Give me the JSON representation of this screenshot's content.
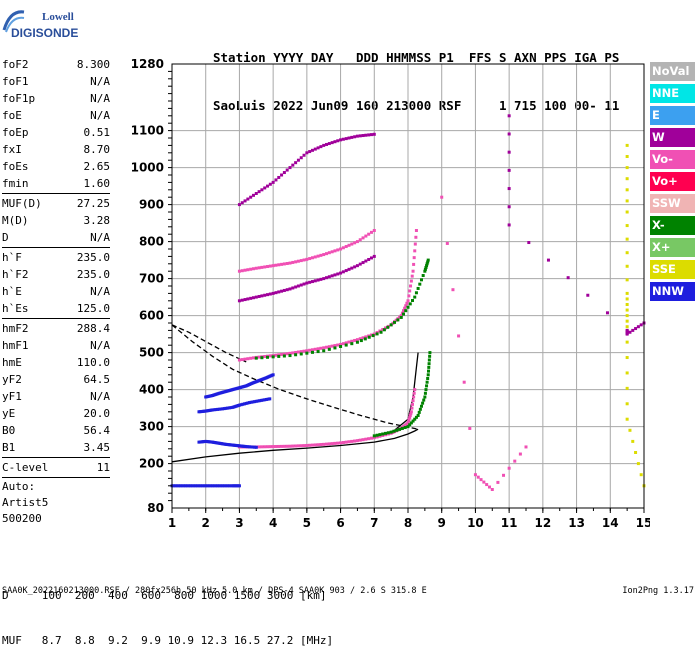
{
  "logo": {
    "line1": "Lowell",
    "line2": "DIGISONDE"
  },
  "header": {
    "line1": "Station YYYY DAY   DDD HHMMSS P1  FFS S AXN PPS IGA PS",
    "line2": "SaoLuis 2022 Jun09 160 213000 RSF     1 715 100 00- 11"
  },
  "params_top": [
    {
      "label": "foF2",
      "value": "8.300"
    },
    {
      "label": "foF1",
      "value": "N/A"
    },
    {
      "label": "foF1p",
      "value": "N/A"
    },
    {
      "label": "foE",
      "value": "N/A"
    },
    {
      "label": "foEp",
      "value": "0.51"
    },
    {
      "label": "fxI",
      "value": "8.70"
    },
    {
      "label": "foEs",
      "value": "2.65"
    },
    {
      "label": "fmin",
      "value": "1.60"
    }
  ],
  "params_muf": [
    {
      "label": "MUF(D)",
      "value": "27.25"
    },
    {
      "label": "M(D)",
      "value": "3.28"
    },
    {
      "label": "D",
      "value": "N/A"
    }
  ],
  "params_heights": [
    {
      "label": "h`F",
      "value": "235.0"
    },
    {
      "label": "h`F2",
      "value": "235.0"
    },
    {
      "label": "h`E",
      "value": "N/A"
    },
    {
      "label": "h`Es",
      "value": "125.0"
    }
  ],
  "params_profile": [
    {
      "label": "hmF2",
      "value": "288.4"
    },
    {
      "label": "hmF1",
      "value": "N/A"
    },
    {
      "label": "hmE",
      "value": "110.0"
    },
    {
      "label": "yF2",
      "value": "64.5"
    },
    {
      "label": "yF1",
      "value": "N/A"
    },
    {
      "label": "yE",
      "value": "20.0"
    },
    {
      "label": "B0",
      "value": "56.4"
    },
    {
      "label": "B1",
      "value": "3.45"
    }
  ],
  "clevel": {
    "label": "C-level",
    "value": "11"
  },
  "auto": {
    "line1": "Auto:",
    "line2": "Artist5",
    "line3": "500200"
  },
  "muf_table": {
    "line1": "D     100  200  400  600  800 1000 1500 3000 [km]",
    "line2": "MUF   8.7  8.8  9.2  9.9 10.9 12.3 16.5 27.2 [MHz]"
  },
  "footer": "SAA0K_2022160213000.RSF / 280fx256h 50 kHz 5.0 km / DPS-4 SAA0K 903 / 2.6 S 315.8 E",
  "version": "Ion2Png 1.3.17",
  "legend": [
    {
      "label": "NoVal",
      "color": "#b4b4b4"
    },
    {
      "label": "NNE",
      "color": "#00e6e6"
    },
    {
      "label": "E",
      "color": "#3ca0f0"
    },
    {
      "label": "W",
      "color": "#a0009a"
    },
    {
      "label": "Vo-",
      "color": "#f050b4"
    },
    {
      "label": "Vo+",
      "color": "#ff0050"
    },
    {
      "label": "SSW",
      "color": "#f0b4b4"
    },
    {
      "label": "X-",
      "color": "#008200"
    },
    {
      "label": "X+",
      "color": "#78c864"
    },
    {
      "label": "SSE",
      "color": "#dcdc00"
    },
    {
      "label": "NNW",
      "color": "#1e1ede"
    }
  ],
  "chart_data": {
    "type": "scatter",
    "xlim": [
      1,
      15
    ],
    "ylim": [
      80,
      1280
    ],
    "x_ticks": [
      "1",
      "2",
      "3",
      "4",
      "5",
      "6",
      "7",
      "8",
      "9",
      "10",
      "11",
      "12",
      "13",
      "14",
      "15"
    ],
    "y_ticks": [
      {
        "v": 80,
        "label": "80"
      },
      {
        "v": 200,
        "label": "200"
      },
      {
        "v": 300,
        "label": "300"
      },
      {
        "v": 400,
        "label": "400"
      },
      {
        "v": 500,
        "label": "500"
      },
      {
        "v": 600,
        "label": "600"
      },
      {
        "v": 700,
        "label": "700"
      },
      {
        "v": 800,
        "label": "800"
      },
      {
        "v": 900,
        "label": "900"
      },
      {
        "v": 1000,
        "label": "1000"
      },
      {
        "v": 1100,
        "label": "1100"
      },
      {
        "v": 1280,
        "label": "1280"
      }
    ],
    "grid": true,
    "legend_position": "right",
    "curves": [
      {
        "name": "vertical_profile",
        "style": "solid",
        "color": "#000000",
        "x": [
          1.0,
          2.0,
          3.0,
          4.0,
          5.0,
          6.0,
          7.0,
          7.6,
          8.0,
          8.2,
          8.3
        ],
        "y": [
          205,
          218,
          228,
          236,
          242,
          249,
          258,
          268,
          280,
          288,
          293
        ]
      },
      {
        "name": "fitted_trace",
        "style": "solid",
        "color": "#000000",
        "x": [
          3.0,
          4.0,
          5.0,
          6.0,
          7.0,
          7.6,
          8.0,
          8.15,
          8.25,
          8.3
        ],
        "y": [
          245,
          247,
          250,
          257,
          270,
          290,
          320,
          380,
          460,
          500
        ]
      },
      {
        "name": "profile_continuation",
        "style": "dashed",
        "color": "#000000",
        "x": [
          1.0,
          1.6,
          2.2,
          2.8,
          3.4,
          4.2,
          5.0,
          5.8,
          6.6,
          7.4,
          8.3
        ],
        "y": [
          575,
          530,
          490,
          455,
          430,
          400,
          375,
          352,
          330,
          310,
          293
        ]
      },
      {
        "name": "profile_continuation_upper",
        "style": "dashed",
        "color": "#000000",
        "x": [
          1.0,
          1.5,
          2.0,
          2.6,
          3.2
        ],
        "y": [
          575,
          555,
          530,
          500,
          475
        ]
      }
    ],
    "traces": [
      {
        "name": "o_trace_f2",
        "color": "#f050b4",
        "x": [
          3.0,
          3.5,
          4.0,
          4.5,
          5.0,
          5.5,
          6.0,
          6.5,
          7.0,
          7.5,
          7.8,
          8.0,
          8.15,
          8.25
        ],
        "y": [
          480,
          487,
          492,
          498,
          505,
          513,
          522,
          535,
          550,
          575,
          600,
          640,
          720,
          830
        ]
      },
      {
        "name": "x_trace_f2",
        "color": "#008200",
        "x": [
          3.5,
          4.5,
          5.5,
          6.5,
          7.2,
          7.8,
          8.2,
          8.5,
          8.6
        ],
        "y": [
          485,
          492,
          505,
          528,
          555,
          595,
          650,
          720,
          750
        ]
      },
      {
        "name": "o_trace_low",
        "color": "#f050b4",
        "x": [
          3.0,
          3.5,
          4.0,
          4.5,
          5.0,
          5.5,
          6.0,
          6.5,
          7.0,
          7.5,
          7.8,
          8.0,
          8.1,
          8.2
        ],
        "y": [
          245,
          245,
          246,
          247,
          249,
          252,
          256,
          262,
          270,
          282,
          295,
          310,
          340,
          400
        ]
      },
      {
        "name": "x_trace_low",
        "color": "#008200",
        "x": [
          7.0,
          7.5,
          8.0,
          8.3,
          8.5,
          8.6,
          8.65
        ],
        "y": [
          275,
          285,
          300,
          330,
          380,
          440,
          500
        ]
      },
      {
        "name": "second_hop",
        "color": "#a0009a",
        "x": [
          3.0,
          3.5,
          4.0,
          4.5,
          5.0,
          5.5,
          6.0,
          6.5,
          7.0
        ],
        "y": [
          640,
          650,
          660,
          672,
          688,
          700,
          715,
          735,
          760
        ]
      },
      {
        "name": "second_hop_upper",
        "color": "#f050b4",
        "x": [
          3.0,
          3.5,
          4.0,
          4.5,
          5.0,
          5.5,
          6.0,
          6.5,
          7.0
        ],
        "y": [
          720,
          728,
          735,
          742,
          752,
          765,
          780,
          800,
          830
        ]
      },
      {
        "name": "third_hop",
        "color": "#a0009a",
        "x": [
          3.0,
          3.5,
          4.0,
          4.5,
          5.0,
          5.5,
          6.0,
          6.5,
          7.0
        ],
        "y": [
          900,
          930,
          960,
          1000,
          1040,
          1060,
          1075,
          1085,
          1090
        ]
      },
      {
        "name": "es_layer",
        "color": "#1e1ede",
        "x": [
          1.0,
          1.3,
          1.6,
          1.9,
          2.2,
          2.5,
          2.8,
          3.0
        ],
        "y": [
          140,
          140,
          140,
          140,
          140,
          140,
          140,
          140
        ]
      },
      {
        "name": "low_band",
        "color": "#1e1ede",
        "x": [
          1.8,
          2.0,
          2.2,
          2.4,
          2.6,
          2.8,
          3.0,
          3.2,
          3.5
        ],
        "y": [
          258,
          260,
          258,
          255,
          252,
          250,
          248,
          246,
          244
        ]
      },
      {
        "name": "spread_blue",
        "color": "#1e1ede",
        "x": [
          2.0,
          2.2,
          2.4,
          2.6,
          2.8,
          3.0,
          3.2,
          3.4,
          3.6,
          3.8,
          4.0
        ],
        "y": [
          380,
          384,
          390,
          395,
          400,
          405,
          410,
          418,
          425,
          432,
          440
        ]
      },
      {
        "name": "spread_mid",
        "color": "#1e1ede",
        "x": [
          1.8,
          2.0,
          2.2,
          2.5,
          2.8,
          3.0,
          3.3,
          3.6,
          3.9
        ],
        "y": [
          340,
          342,
          345,
          348,
          352,
          358,
          365,
          370,
          375
        ]
      },
      {
        "name": "noval_noise",
        "color": "#dcdc00",
        "x": [
          14.5,
          14.5,
          14.5,
          14.5,
          14.5,
          15.0
        ],
        "y": [
          1060,
          880,
          660,
          570,
          320,
          140
        ]
      },
      {
        "name": "w_noise",
        "color": "#a0009a",
        "x": [
          11.0,
          11.0,
          14.5,
          14.5,
          15.0
        ],
        "y": [
          1140,
          845,
          560,
          550,
          580
        ]
      },
      {
        "name": "misc",
        "color": "#f050b4",
        "x": [
          9.0,
          10.0,
          10.5,
          11.5
        ],
        "y": [
          920,
          170,
          130,
          245
        ]
      }
    ]
  }
}
